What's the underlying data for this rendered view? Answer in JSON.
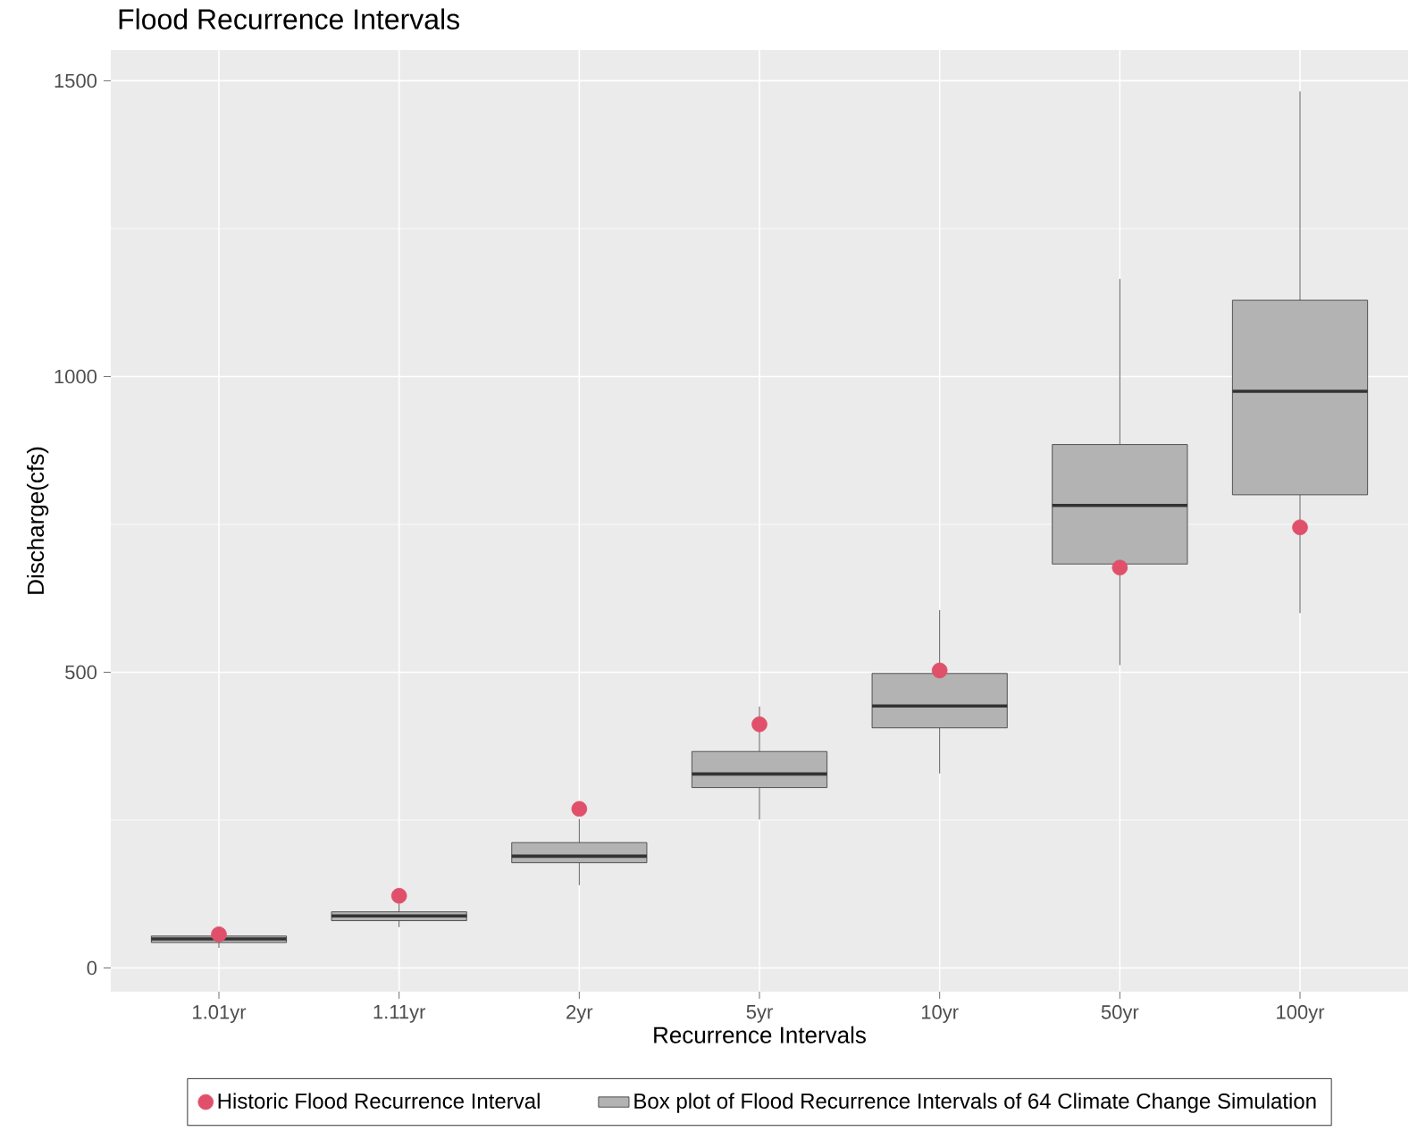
{
  "chart_data": {
    "type": "box",
    "title": "Flood Recurrence Intervals",
    "xlabel": "Recurrence Intervals",
    "ylabel": "Discharge(cfs)",
    "categories": [
      "1.01yr",
      "1.11yr",
      "2yr",
      "5yr",
      "10yr",
      "50yr",
      "100yr"
    ],
    "series": [
      {
        "type": "scatter",
        "name": "Historic Flood Recurrence Interval",
        "color": "#e0506a",
        "x": [
          "1.01yr",
          "1.11yr",
          "2yr",
          "5yr",
          "10yr",
          "50yr",
          "100yr"
        ],
        "values": [
          57,
          122,
          269,
          412,
          503,
          677,
          745
        ]
      },
      {
        "name": "Box plot of Flood Recurrence Intervals of 64 Climate Change Simulation",
        "color": "#b3b3b3",
        "boxes": [
          {
            "low": 34,
            "q1": 43,
            "median": 49,
            "q3": 54,
            "high": 58
          },
          {
            "low": 69,
            "q1": 80,
            "median": 88,
            "q3": 95,
            "high": 109
          },
          {
            "low": 140,
            "q1": 178,
            "median": 189,
            "q3": 212,
            "high": 252
          },
          {
            "low": 251,
            "q1": 305,
            "median": 328,
            "q3": 366,
            "high": 442
          },
          {
            "low": 329,
            "q1": 406,
            "median": 443,
            "q3": 498,
            "high": 605
          },
          {
            "low": 512,
            "q1": 683,
            "median": 782,
            "q3": 885,
            "high": 1165
          },
          {
            "low": 600,
            "q1": 800,
            "median": 975,
            "q3": 1129,
            "high": 1482
          }
        ]
      }
    ],
    "ylim": [
      -40,
      1552
    ],
    "yticks": [
      0,
      500,
      1000,
      1500
    ],
    "grid": true,
    "legend": "bottom",
    "marker": "circle"
  }
}
